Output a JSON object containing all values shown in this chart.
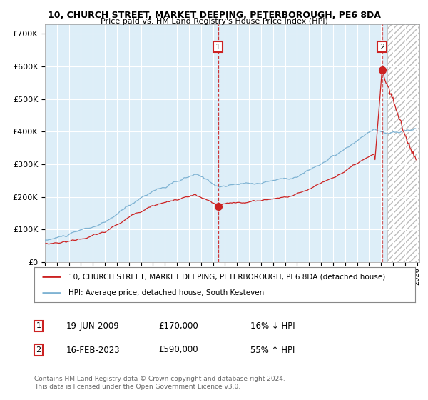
{
  "title1": "10, CHURCH STREET, MARKET DEEPING, PETERBOROUGH, PE6 8DA",
  "title2": "Price paid vs. HM Land Registry's House Price Index (HPI)",
  "ylabel_ticks": [
    "£0",
    "£100K",
    "£200K",
    "£300K",
    "£400K",
    "£500K",
    "£600K",
    "£700K"
  ],
  "ytick_vals": [
    0,
    100000,
    200000,
    300000,
    400000,
    500000,
    600000,
    700000
  ],
  "ylim": [
    0,
    730000
  ],
  "hpi_color": "#7fb3d3",
  "price_color": "#cc2222",
  "bg_color": "#ddeef8",
  "legend_line1": "10, CHURCH STREET, MARKET DEEPING, PETERBOROUGH, PE6 8DA (detached house)",
  "legend_line2": "HPI: Average price, detached house, South Kesteven",
  "ann1_date": "19-JUN-2009",
  "ann1_price": "£170,000",
  "ann1_pct": "16% ↓ HPI",
  "ann2_date": "16-FEB-2023",
  "ann2_price": "£590,000",
  "ann2_pct": "55% ↑ HPI",
  "footnote1": "Contains HM Land Registry data © Crown copyright and database right 2024.",
  "footnote2": "This data is licensed under the Open Government Licence v3.0."
}
